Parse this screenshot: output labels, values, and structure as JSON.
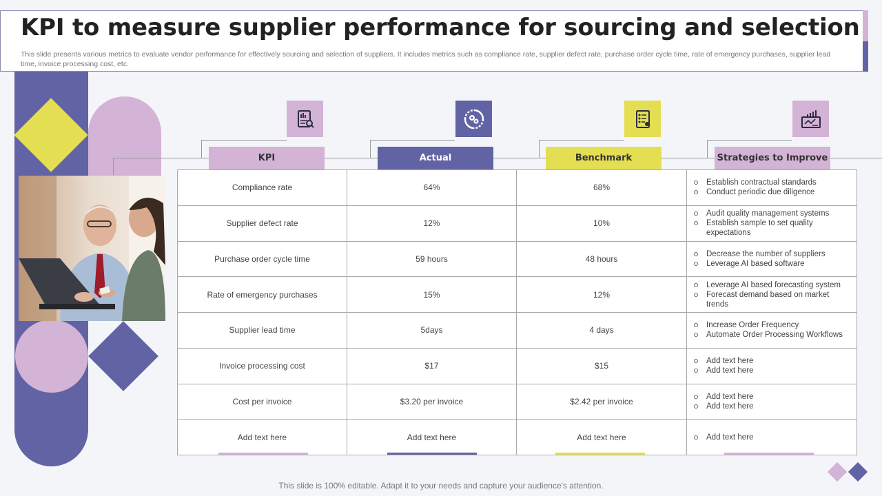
{
  "title": "KPI to measure supplier performance for sourcing and selection",
  "subtitle": "This slide presents various metrics to evaluate vendor performance for effectively  sourcing and selection of suppliers. It includes metrics such as compliance rate, supplier defect rate, purchase order cycle time, rate of emergency purchases, supplier lead time, invoice processing cost, etc.",
  "columns": [
    {
      "label": "KPI",
      "color": "#d3b3d6",
      "text_color": "#333333",
      "icon": "clipboard-report-icon"
    },
    {
      "label": "Actual",
      "color": "#6263a4",
      "text_color": "#ffffff",
      "icon": "cycle-gears-icon"
    },
    {
      "label": "Benchmark",
      "color": "#e4de52",
      "text_color": "#333333",
      "icon": "checklist-document-icon"
    },
    {
      "label": "Strategies to Improve",
      "color": "#d3b3d6",
      "text_color": "#333333",
      "icon": "growth-chart-icon"
    }
  ],
  "rows": [
    {
      "kpi": "Compliance rate",
      "actual": "64%",
      "benchmark": "68%",
      "strategies": [
        "Establish contractual standards",
        "Conduct periodic due diligence"
      ]
    },
    {
      "kpi": "Supplier defect rate",
      "actual": "12%",
      "benchmark": "10%",
      "strategies": [
        "Audit quality management systems",
        "Establish sample to set quality expectations"
      ]
    },
    {
      "kpi": "Purchase order cycle time",
      "actual": "59 hours",
      "benchmark": "48 hours",
      "strategies": [
        "Decrease the number of suppliers",
        "Leverage AI  based software"
      ]
    },
    {
      "kpi": "Rate of emergency purchases",
      "actual": "15%",
      "benchmark": "12%",
      "strategies": [
        "Leverage AI  based forecasting system",
        "Forecast demand based on market trends"
      ]
    },
    {
      "kpi": "Supplier lead time",
      "actual": "5days",
      "benchmark": "4 days",
      "strategies": [
        "Increase Order Frequency",
        "Automate Order Processing Workflows"
      ]
    },
    {
      "kpi": "Invoice processing cost",
      "actual": "$17",
      "benchmark": "$15",
      "strategies": [
        "Add text here",
        "Add text here"
      ]
    },
    {
      "kpi": "Cost per invoice",
      "actual": "$3.20 per invoice",
      "benchmark": "$2.42 per invoice",
      "strategies": [
        "Add text here",
        "Add text here"
      ]
    },
    {
      "kpi": "Add text here",
      "actual": "Add text here",
      "benchmark": "Add text here",
      "strategies": [
        "Add text here"
      ]
    }
  ],
  "footer": "This slide is 100% editable. Adapt it to your needs and capture your audience's attention.",
  "colors": {
    "lavender": "#d3b3d6",
    "navy": "#6263a4",
    "yellow": "#e4de52"
  }
}
